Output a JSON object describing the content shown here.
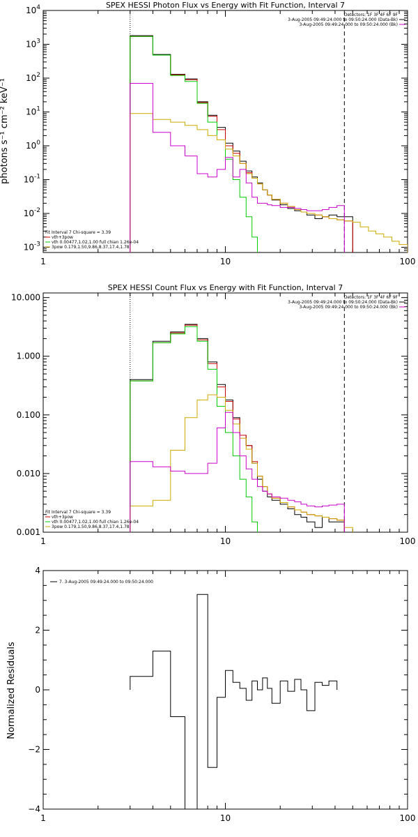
{
  "chart_data": [
    {
      "type": "line",
      "title": "SPEX HESSI Photon Flux vs Energy with Fit Function, Interval 7",
      "xlabel": "",
      "ylabel": "photons s⁻¹ cm⁻² keV⁻¹",
      "xscale": "log",
      "yscale": "log",
      "xlim": [
        1,
        100
      ],
      "ylim": [
        0.0007,
        10000
      ],
      "xticks": [
        "1",
        "10",
        "100"
      ],
      "yticks": [
        {
          "base": "10",
          "exp": "4"
        },
        {
          "base": "10",
          "exp": "3"
        },
        {
          "base": "10",
          "exp": "2"
        },
        {
          "base": "10",
          "exp": "1"
        },
        {
          "base": "10",
          "exp": "0"
        },
        {
          "base": "10",
          "exp": "-1"
        },
        {
          "base": "10",
          "exp": "-2"
        },
        {
          "base": "10",
          "exp": "-3"
        }
      ],
      "vlines": [
        {
          "x": 3,
          "style": "dotted"
        },
        {
          "x": 45,
          "style": "dashed"
        }
      ],
      "legend_tr": [
        {
          "text": "Detectors: 1F 3F 4F 6F 9F",
          "color": ""
        },
        {
          "text": "3-Aug-2005 09:49:24.000 to 09:50:24.000 (Data-Bk)",
          "color": "#000000"
        },
        {
          "text": "3-Aug-2005 09:49:24.000 to 09:50:24.000 (Bk)",
          "color": "#cc00cc"
        }
      ],
      "legend_bl": [
        {
          "text": "Fit Interval 7   Chi-square = 3.39",
          "color": ""
        },
        {
          "text": "vth+3pow",
          "color": "#cc0000"
        },
        {
          "text": "vth 0.00477,1.02,1.00  full chian 1.26e-04",
          "color": "#00cc00"
        },
        {
          "text": "3pow 0.179,1.50,9.86,8.37,17.4,1.78",
          "color": "#ccaa00"
        }
      ],
      "edges": [
        3,
        4,
        5,
        6,
        7,
        8,
        9,
        10,
        11,
        12,
        13,
        14,
        15,
        16,
        17,
        18,
        20,
        22,
        24,
        26,
        28,
        31,
        34,
        37,
        41,
        45,
        50,
        55,
        61,
        67,
        74,
        82,
        90,
        100
      ],
      "series": [
        {
          "color": "#000000",
          "values": [
            1800,
            500,
            130,
            95,
            20,
            8,
            3.5,
            1.2,
            0.7,
            0.35,
            0.18,
            0.12,
            0.08,
            0.05,
            0.035,
            0.025,
            0.018,
            0.014,
            0.012,
            0.011,
            0.009,
            0.007,
            0.008,
            0.009,
            0.008,
            0.008
          ]
        },
        {
          "color": "#cc0000",
          "values": [
            1700,
            480,
            125,
            90,
            19,
            7.5,
            3.0,
            1.0,
            0.6,
            0.3,
            0.16,
            0.11,
            0.075,
            0.05,
            0.035,
            0.026,
            0.02,
            0.016,
            0.013,
            0.011,
            0.01,
            0.009,
            0.008,
            0.007,
            0.0065,
            0.006
          ]
        },
        {
          "color": "#00cc00",
          "values": [
            1700,
            480,
            120,
            80,
            18,
            5,
            1.5,
            0.4,
            0.1,
            0.03,
            0.008,
            0.002
          ]
        },
        {
          "color": "#ccaa00",
          "values": [
            9,
            6,
            5,
            4,
            3,
            2,
            1.5,
            0.8,
            0.5,
            0.3,
            0.15,
            0.11,
            0.075,
            0.05,
            0.035,
            0.026,
            0.02,
            0.016,
            0.013,
            0.011,
            0.01,
            0.009,
            0.008,
            0.007,
            0.0065,
            0.006,
            0.0055,
            0.004,
            0.003,
            0.0025,
            0.002,
            0.0015,
            0.0012
          ]
        },
        {
          "color": "#cc00cc",
          "values": [
            70,
            2.5,
            1.0,
            0.5,
            0.15,
            0.12,
            0.2,
            0.45,
            0.12,
            0.2,
            0.08,
            0.03,
            0.02,
            0.02,
            0.018,
            0.017,
            0.015,
            0.015,
            0.014,
            0.013,
            0.012,
            0.012,
            0.013,
            0.015,
            0.017
          ]
        }
      ]
    },
    {
      "type": "line",
      "title": "SPEX HESSI Count Flux vs Energy with Fit Function, Interval 7",
      "xlabel": "",
      "ylabel": "",
      "xscale": "log",
      "yscale": "log",
      "xlim": [
        1,
        100
      ],
      "ylim": [
        0.001,
        12
      ],
      "xticks": [
        "1",
        "10",
        "100"
      ],
      "yticks": [
        {
          "base": "10.000",
          "exp": ""
        },
        {
          "base": "1.000",
          "exp": ""
        },
        {
          "base": "0.100",
          "exp": ""
        },
        {
          "base": "0.010",
          "exp": ""
        },
        {
          "base": "0.001",
          "exp": ""
        }
      ],
      "vlines": [
        {
          "x": 3,
          "style": "dotted"
        },
        {
          "x": 45,
          "style": "dashed"
        }
      ],
      "legend_tr": [
        {
          "text": "Detectors: 1F 3F 4F 6F 9F",
          "color": ""
        },
        {
          "text": "3-Aug-2005 09:49:24.000 to 09:50:24.000 (Data-Bk)",
          "color": "#000000"
        },
        {
          "text": "3-Aug-2005 09:49:24.000 to 09:50:24.000 (Bk)",
          "color": "#cc00cc"
        }
      ],
      "legend_bl": [
        {
          "text": "Fit Interval 7   Chi-square = 3.39",
          "color": ""
        },
        {
          "text": "vth+3pow",
          "color": "#cc0000"
        },
        {
          "text": "vth 0.00477,1.02,1.00  full chian 1.26e-04",
          "color": "#00cc00"
        },
        {
          "text": "3pow 0.179,1.50,9.86,8.37,17.4,1.78",
          "color": "#ccaa00"
        }
      ],
      "edges": [
        3,
        4,
        5,
        6,
        7,
        8,
        9,
        10,
        11,
        12,
        13,
        14,
        15,
        16,
        17,
        18,
        20,
        22,
        24,
        26,
        28,
        31,
        34,
        37,
        41,
        45,
        50
      ],
      "series": [
        {
          "color": "#000000",
          "values": [
            0.4,
            1.8,
            2.6,
            3.5,
            2.0,
            0.8,
            0.33,
            0.18,
            0.09,
            0.045,
            0.03,
            0.015,
            0.008,
            0.005,
            0.004,
            0.0035,
            0.003,
            0.0025,
            0.002,
            0.0018,
            0.0015,
            0.0012,
            0.0018,
            0.0015,
            0.0015
          ]
        },
        {
          "color": "#cc0000",
          "values": [
            0.38,
            1.7,
            2.5,
            3.4,
            1.9,
            0.75,
            0.3,
            0.17,
            0.085,
            0.045,
            0.03,
            0.016,
            0.009,
            0.006,
            0.0045,
            0.0038,
            0.0032,
            0.0027,
            0.0024,
            0.0022,
            0.002,
            0.0019,
            0.0018,
            0.0017,
            0.0016
          ]
        },
        {
          "color": "#00cc00",
          "values": [
            0.38,
            1.7,
            2.4,
            3.2,
            1.8,
            0.6,
            0.14,
            0.05,
            0.02,
            0.008,
            0.004,
            0.0015
          ]
        },
        {
          "color": "#ccaa00",
          "values": [
            0.0028,
            0.0035,
            0.025,
            0.09,
            0.18,
            0.22,
            0.2,
            0.12,
            0.07,
            0.04,
            0.026,
            0.015,
            0.009,
            0.006,
            0.0045,
            0.0038,
            0.0032,
            0.0027,
            0.0024,
            0.0022,
            0.002,
            0.0019,
            0.0018,
            0.0017,
            0.0016,
            0.0012
          ]
        },
        {
          "color": "#cc00cc",
          "values": [
            0.016,
            0.013,
            0.011,
            0.01,
            0.01,
            0.015,
            0.06,
            0.11,
            0.05,
            0.02,
            0.012,
            0.008,
            0.006,
            0.005,
            0.0045,
            0.004,
            0.0038,
            0.0035,
            0.0033,
            0.003,
            0.0028,
            0.0027,
            0.0028,
            0.0029,
            0.003
          ]
        }
      ]
    },
    {
      "type": "line",
      "title": "",
      "xlabel": "",
      "ylabel": "Normalized Residuals",
      "xscale": "log",
      "yscale": "linear",
      "xlim": [
        1,
        100
      ],
      "ylim": [
        -4,
        4
      ],
      "xticks": [
        "1",
        "10",
        "100"
      ],
      "yticks": [
        {
          "base": "4",
          "exp": ""
        },
        {
          "base": "2",
          "exp": ""
        },
        {
          "base": "0",
          "exp": ""
        },
        {
          "base": "−2",
          "exp": ""
        },
        {
          "base": "−4",
          "exp": ""
        }
      ],
      "legend_tl": {
        "text": "7.  3-Aug-2005 09:49:24.000 to 09:50:24.000",
        "color": "#000000"
      },
      "edges": [
        3,
        4,
        5,
        6,
        7,
        8,
        9,
        10,
        11,
        12,
        13,
        14,
        15,
        16,
        17,
        18,
        20,
        22,
        24,
        26,
        28,
        31,
        34,
        37,
        41,
        45
      ],
      "series": [
        {
          "color": "#000000",
          "values": [
            0.45,
            1.3,
            -0.9,
            -4,
            3.2,
            -2.6,
            -0.25,
            0.65,
            0.25,
            0.05,
            -0.35,
            0.3,
            0.0,
            0.4,
            0.05,
            -0.45,
            0.3,
            -0.05,
            0.35,
            0.0,
            -0.7,
            0.25,
            0.15,
            0.3
          ]
        }
      ]
    }
  ]
}
